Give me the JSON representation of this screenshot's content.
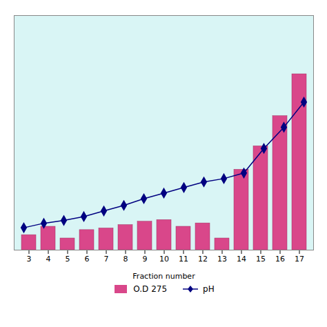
{
  "chart_data": {
    "type": "bar",
    "xlabel": "Fraction number",
    "categories": [
      "3",
      "4",
      "5",
      "6",
      "7",
      "8",
      "9",
      "10",
      "11",
      "12",
      "13",
      "14",
      "15",
      "16",
      "17"
    ],
    "series": [
      {
        "name": "O.D 275",
        "type": "bar",
        "color": "#d9478a",
        "values": [
          0.09,
          0.14,
          0.07,
          0.12,
          0.13,
          0.15,
          0.17,
          0.18,
          0.14,
          0.16,
          0.07,
          0.48,
          0.62,
          0.8,
          1.05
        ]
      },
      {
        "name": "pH",
        "type": "line",
        "color": "#000080",
        "marker": "diamond",
        "axis": "y2",
        "values": [
          5.2,
          5.28,
          5.33,
          5.4,
          5.5,
          5.6,
          5.72,
          5.82,
          5.92,
          6.02,
          6.08,
          6.18,
          6.62,
          7.0,
          7.45
        ]
      }
    ],
    "ylim": [
      0,
      1.4
    ],
    "y2lim": [
      4.8,
      9.0
    ],
    "grid": false,
    "legend": "bottom",
    "tick_labels": "x"
  }
}
